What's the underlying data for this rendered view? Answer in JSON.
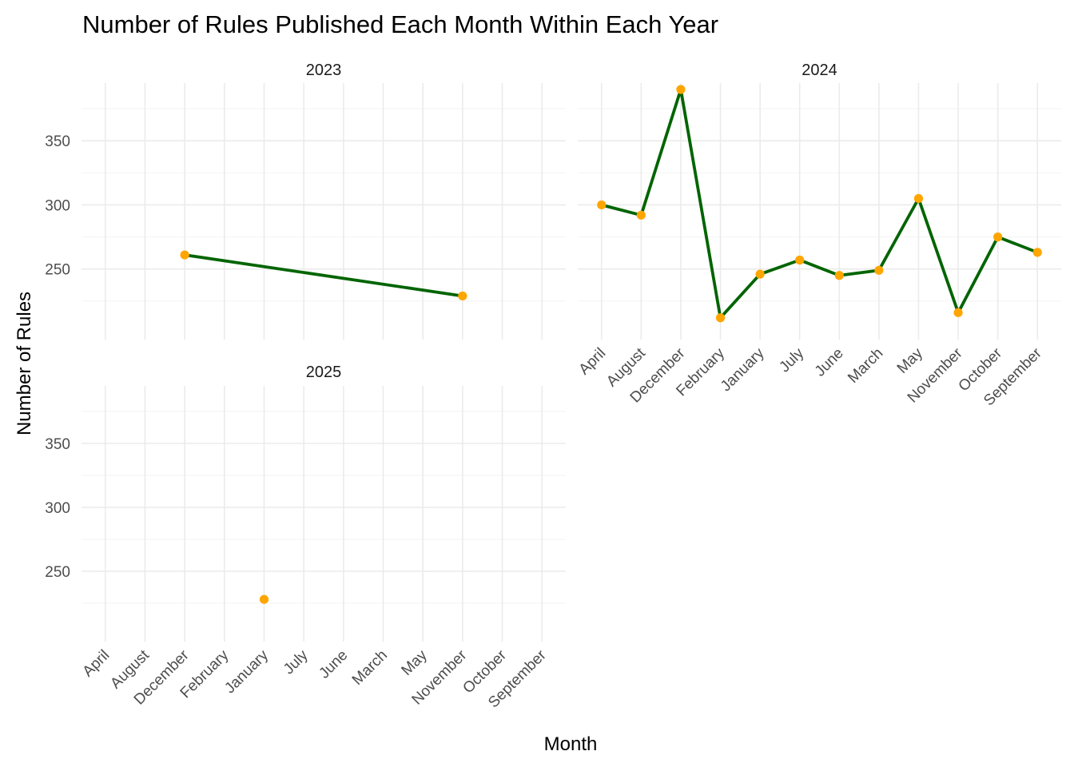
{
  "chart_data": {
    "type": "line",
    "title": "Number of Rules Published Each Month Within Each Year",
    "xlabel": "Month",
    "ylabel": "Number of Rules",
    "categories": [
      "April",
      "August",
      "December",
      "February",
      "January",
      "July",
      "June",
      "March",
      "May",
      "November",
      "October",
      "September"
    ],
    "yticks": [
      250,
      300,
      350
    ],
    "ylim": [
      200,
      390
    ],
    "grid": true,
    "line_color": "#006400",
    "point_color": "#FFA500",
    "panels": [
      {
        "label": "2023",
        "points": [
          {
            "x": "December",
            "y": 261
          },
          {
            "x": "November",
            "y": 229
          }
        ]
      },
      {
        "label": "2024",
        "points": [
          {
            "x": "April",
            "y": 300
          },
          {
            "x": "August",
            "y": 292
          },
          {
            "x": "December",
            "y": 390
          },
          {
            "x": "February",
            "y": 212
          },
          {
            "x": "January",
            "y": 246
          },
          {
            "x": "July",
            "y": 257
          },
          {
            "x": "June",
            "y": 245
          },
          {
            "x": "March",
            "y": 249
          },
          {
            "x": "May",
            "y": 305
          },
          {
            "x": "November",
            "y": 216
          },
          {
            "x": "October",
            "y": 275
          },
          {
            "x": "September",
            "y": 263
          }
        ]
      },
      {
        "label": "2025",
        "points": [
          {
            "x": "January",
            "y": 228
          }
        ]
      }
    ]
  }
}
